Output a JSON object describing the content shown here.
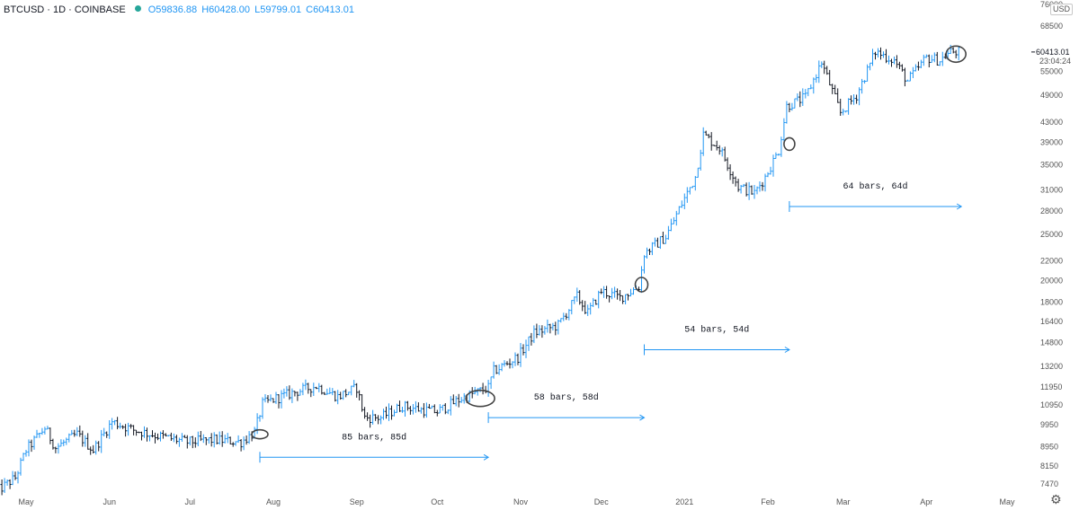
{
  "header": {
    "symbol": "BTCUSD · 1D · COINBASE",
    "open": "O59836.88",
    "high": "H60428.00",
    "low": "L59799.01",
    "close": "C60413.01"
  },
  "axis": {
    "currency_label": "USD",
    "price_label": "60413.01",
    "countdown_label": "23:04:24",
    "settings_icon": "gear-icon"
  },
  "colors": {
    "up": "#2196f3",
    "down": "#131722",
    "measure": "#2196f3",
    "circle": "#444444"
  },
  "chart_data": {
    "type": "ohlc-bar",
    "symbol": "BTCUSD",
    "interval": "1D",
    "y_scale": "log",
    "ylim": [
      7000,
      76000
    ],
    "y_ticks": [
      7470,
      8150,
      8950,
      9950,
      10950,
      11950,
      13200,
      14800,
      16400,
      18000,
      20000,
      22000,
      25000,
      28000,
      31000,
      35000,
      39000,
      43000,
      49000,
      55000,
      68500,
      76000
    ],
    "x_ticks": [
      {
        "label": "May",
        "date": "2020-05-01"
      },
      {
        "label": "Jun",
        "date": "2020-06-01"
      },
      {
        "label": "Jul",
        "date": "2020-07-01"
      },
      {
        "label": "Aug",
        "date": "2020-08-01"
      },
      {
        "label": "Sep",
        "date": "2020-09-01"
      },
      {
        "label": "Oct",
        "date": "2020-10-01"
      },
      {
        "label": "Nov",
        "date": "2020-11-01"
      },
      {
        "label": "Dec",
        "date": "2020-12-01"
      },
      {
        "label": "2021",
        "date": "2021-01-01"
      },
      {
        "label": "Feb",
        "date": "2021-02-01"
      },
      {
        "label": "Mar",
        "date": "2021-03-01"
      },
      {
        "label": "Apr",
        "date": "2021-04-01"
      },
      {
        "label": "May",
        "date": "2021-05-01"
      }
    ],
    "close_path": [
      {
        "date": "2020-04-20",
        "close": 7200
      },
      {
        "date": "2020-04-27",
        "close": 7700
      },
      {
        "date": "2020-05-01",
        "close": 8800
      },
      {
        "date": "2020-05-08",
        "close": 9800
      },
      {
        "date": "2020-05-12",
        "close": 8900
      },
      {
        "date": "2020-05-20",
        "close": 9500
      },
      {
        "date": "2020-05-26",
        "close": 8800
      },
      {
        "date": "2020-06-02",
        "close": 10100
      },
      {
        "date": "2020-06-10",
        "close": 9700
      },
      {
        "date": "2020-06-20",
        "close": 9400
      },
      {
        "date": "2020-06-30",
        "close": 9150
      },
      {
        "date": "2020-07-10",
        "close": 9250
      },
      {
        "date": "2020-07-20",
        "close": 9150
      },
      {
        "date": "2020-07-25",
        "close": 9600
      },
      {
        "date": "2020-07-28",
        "close": 11000
      },
      {
        "date": "2020-08-02",
        "close": 11300
      },
      {
        "date": "2020-08-10",
        "close": 11700
      },
      {
        "date": "2020-08-17",
        "close": 12000
      },
      {
        "date": "2020-08-25",
        "close": 11400
      },
      {
        "date": "2020-09-01",
        "close": 11900
      },
      {
        "date": "2020-09-04",
        "close": 10300
      },
      {
        "date": "2020-09-10",
        "close": 10300
      },
      {
        "date": "2020-09-18",
        "close": 10900
      },
      {
        "date": "2020-09-25",
        "close": 10700
      },
      {
        "date": "2020-10-01",
        "close": 10600
      },
      {
        "date": "2020-10-10",
        "close": 11300
      },
      {
        "date": "2020-10-20",
        "close": 11900
      },
      {
        "date": "2020-10-22",
        "close": 12900
      },
      {
        "date": "2020-10-31",
        "close": 13800
      },
      {
        "date": "2020-11-06",
        "close": 15500
      },
      {
        "date": "2020-11-15",
        "close": 16100
      },
      {
        "date": "2020-11-22",
        "close": 18500
      },
      {
        "date": "2020-11-26",
        "close": 17100
      },
      {
        "date": "2020-12-01",
        "close": 19000
      },
      {
        "date": "2020-12-08",
        "close": 18400
      },
      {
        "date": "2020-12-15",
        "close": 19400
      },
      {
        "date": "2020-12-17",
        "close": 22800
      },
      {
        "date": "2020-12-25",
        "close": 24700
      },
      {
        "date": "2020-12-31",
        "close": 29000
      },
      {
        "date": "2021-01-05",
        "close": 33000
      },
      {
        "date": "2021-01-08",
        "close": 40500
      },
      {
        "date": "2021-01-14",
        "close": 38000
      },
      {
        "date": "2021-01-21",
        "close": 31500
      },
      {
        "date": "2021-01-27",
        "close": 30500
      },
      {
        "date": "2021-01-31",
        "close": 33000
      },
      {
        "date": "2021-02-05",
        "close": 37500
      },
      {
        "date": "2021-02-08",
        "close": 46500
      },
      {
        "date": "2021-02-15",
        "close": 48500
      },
      {
        "date": "2021-02-21",
        "close": 57500
      },
      {
        "date": "2021-02-28",
        "close": 45000
      },
      {
        "date": "2021-03-06",
        "close": 49000
      },
      {
        "date": "2021-03-13",
        "close": 60500
      },
      {
        "date": "2021-03-20",
        "close": 58000
      },
      {
        "date": "2021-03-25",
        "close": 52500
      },
      {
        "date": "2021-04-01",
        "close": 58800
      },
      {
        "date": "2021-04-06",
        "close": 58000
      },
      {
        "date": "2021-04-10",
        "close": 60500
      },
      {
        "date": "2021-04-13",
        "close": 60413
      }
    ],
    "annotations": [
      {
        "type": "bars-range",
        "label": "85 bars, 85d",
        "start": "2020-07-27",
        "end": "2020-10-20",
        "price": 8500
      },
      {
        "type": "bars-range",
        "label": "58 bars, 58d",
        "start": "2020-10-20",
        "end": "2020-12-17",
        "price": 10300
      },
      {
        "type": "bars-range",
        "label": "54 bars, 54d",
        "start": "2020-12-17",
        "end": "2021-02-09",
        "price": 14300
      },
      {
        "type": "bars-range",
        "label": "64 bars, 64d",
        "start": "2021-02-09",
        "end": "2021-04-14",
        "price": 28600
      }
    ],
    "circles": [
      {
        "date": "2020-07-27",
        "price": 9500
      },
      {
        "date": "2020-10-17",
        "price": 11300
      },
      {
        "date": "2020-12-16",
        "price": 19600
      },
      {
        "date": "2021-02-09",
        "price": 38700
      },
      {
        "date": "2021-04-12",
        "price": 59800
      }
    ]
  }
}
